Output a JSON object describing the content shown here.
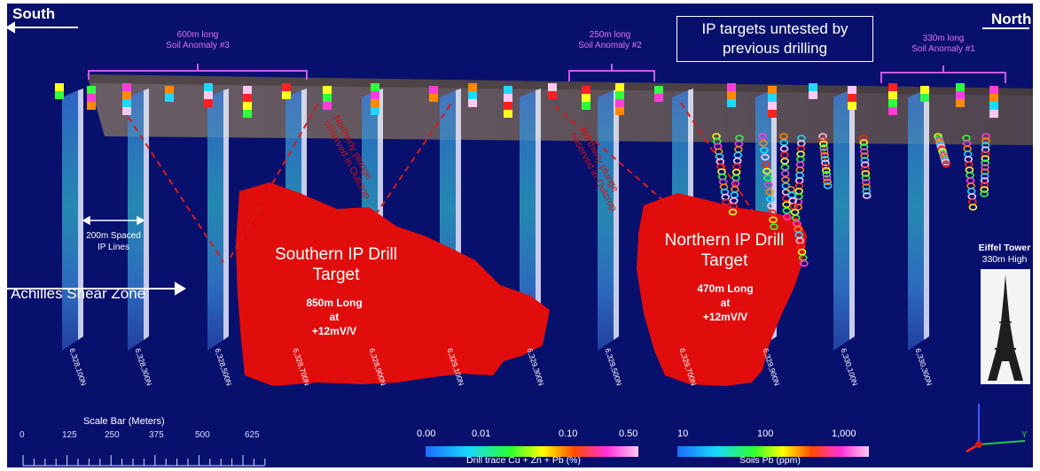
{
  "directions": {
    "south": "South",
    "north": "North"
  },
  "ip_box": {
    "line1": "IP targets untested by",
    "line2": "previous drilling"
  },
  "soil_anomalies": [
    {
      "line1": "600m long",
      "line2": "Soil Anomaly #3"
    },
    {
      "line1": "250m long",
      "line2": "Soil Anomaly #2"
    },
    {
      "line1": "330m long",
      "line2": "Soil Anomaly #1"
    }
  ],
  "plunge_labels": [
    {
      "line1": "Northerly plunge",
      "line2": "observed in Outcrop"
    },
    {
      "line1": "Northerly plunge",
      "line2": "observed in Outcrop"
    }
  ],
  "spacing_label": {
    "line1": "200m Spaced",
    "line2": "IP Lines"
  },
  "shear_zone": "Achilles Shear Zone",
  "southern_target": {
    "title1": "Southern IP Drill",
    "title2": "Target",
    "sub1": "850m Long",
    "sub2": "at",
    "sub3": "+12mV/V"
  },
  "northern_target": {
    "title1": "Northern IP Drill",
    "title2": "Target",
    "sub1": "470m Long",
    "sub2": "at",
    "sub3": "+12mV/V"
  },
  "eiffel": {
    "line1": "Eiffel Tower",
    "line2": "330m High"
  },
  "ip_lines": [
    "6,328,100N",
    "6,328,300N",
    "6,328,500N",
    "6,328,700N",
    "6,328,900N",
    "6,329,100N",
    "6,329,300N",
    "6,329,500N",
    "6,329,700N",
    "6,329,900N",
    "6,330,100N",
    "6,330,300N"
  ],
  "scale_bar": {
    "title": "Scale Bar (Meters)",
    "ticks": [
      "0",
      "125",
      "250",
      "375",
      "500",
      "625"
    ]
  },
  "drill_colorbar": {
    "ticks": [
      "0.00",
      "0.01",
      "0.10",
      "0.50"
    ],
    "title": "Drill trace Cu + Zn + Pb (%)"
  },
  "soil_colorbar": {
    "ticks": [
      "10",
      "100",
      "1,000"
    ],
    "title": "Soils Pb (ppm)"
  },
  "axes_widget": {
    "y_label": "Y"
  },
  "colors": {
    "background": "#08106e",
    "target": "#e00c0c",
    "soil_bracket": "#c85ae6",
    "plunge_line": "#d81a1a"
  }
}
